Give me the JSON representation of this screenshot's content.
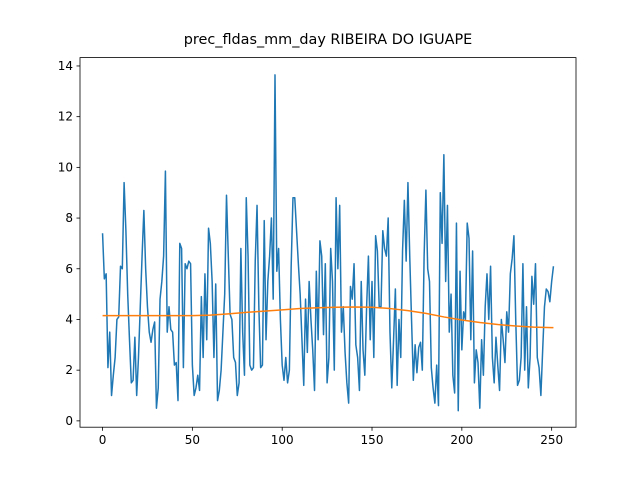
{
  "chart_data": {
    "type": "line",
    "title": "prec_fldas_mm_day RIBEIRA DO IGUAPE",
    "xlim": [
      -12.55,
      263.55
    ],
    "ylim": [
      -0.25,
      14.33
    ],
    "xticks": [
      0,
      50,
      100,
      150,
      200,
      250
    ],
    "yticks": [
      0,
      2,
      4,
      6,
      8,
      10,
      12,
      14
    ],
    "series": [
      {
        "color": "#1f77b4",
        "x": [
          0,
          1,
          2,
          3,
          4,
          5,
          6,
          7,
          8,
          9,
          10,
          11,
          12,
          13,
          14,
          15,
          16,
          17,
          18,
          19,
          20,
          21,
          22,
          23,
          24,
          25,
          26,
          27,
          28,
          29,
          30,
          31,
          32,
          33,
          34,
          35,
          36,
          37,
          38,
          39,
          40,
          41,
          42,
          43,
          44,
          45,
          46,
          47,
          48,
          49,
          50,
          51,
          52,
          53,
          54,
          55,
          56,
          57,
          58,
          59,
          60,
          61,
          62,
          63,
          64,
          65,
          66,
          67,
          68,
          69,
          70,
          71,
          72,
          73,
          74,
          75,
          76,
          77,
          78,
          79,
          80,
          81,
          82,
          83,
          84,
          85,
          86,
          87,
          88,
          89,
          90,
          91,
          92,
          93,
          94,
          95,
          96,
          97,
          98,
          99,
          100,
          101,
          102,
          103,
          104,
          105,
          106,
          107,
          108,
          109,
          110,
          111,
          112,
          113,
          114,
          115,
          116,
          117,
          118,
          119,
          120,
          121,
          122,
          123,
          124,
          125,
          126,
          127,
          128,
          129,
          130,
          131,
          132,
          133,
          134,
          135,
          136,
          137,
          138,
          139,
          140,
          141,
          142,
          143,
          144,
          145,
          146,
          147,
          148,
          149,
          150,
          151,
          152,
          153,
          154,
          155,
          156,
          157,
          158,
          159,
          160,
          161,
          162,
          163,
          164,
          165,
          166,
          167,
          168,
          169,
          170,
          171,
          172,
          173,
          174,
          175,
          176,
          177,
          178,
          179,
          180,
          181,
          182,
          183,
          184,
          185,
          186,
          187,
          188,
          189,
          190,
          191,
          192,
          193,
          194,
          195,
          196,
          197,
          198,
          199,
          200,
          201,
          202,
          203,
          204,
          205,
          206,
          207,
          208,
          209,
          210,
          211,
          212,
          213,
          214,
          215,
          216,
          217,
          218,
          219,
          220,
          221,
          222,
          223,
          224,
          225,
          226,
          227,
          228,
          229,
          230,
          231,
          232,
          233,
          234,
          235,
          236,
          237,
          238,
          239,
          240,
          241,
          242,
          243,
          244,
          245,
          246,
          247,
          248,
          249,
          250,
          251
        ],
        "values": [
          7.4,
          5.6,
          5.8,
          2.1,
          3.5,
          1.0,
          1.8,
          2.5,
          4.0,
          4.1,
          6.1,
          6.0,
          9.4,
          7.5,
          5.0,
          3.2,
          1.5,
          1.6,
          3.3,
          1.0,
          2.5,
          4.5,
          6.5,
          8.3,
          6.0,
          4.5,
          3.5,
          3.1,
          3.6,
          3.9,
          0.5,
          1.3,
          4.8,
          5.5,
          6.5,
          9.85,
          3.5,
          4.5,
          3.6,
          3.5,
          2.2,
          2.3,
          0.8,
          7.0,
          6.8,
          2.1,
          6.2,
          6.0,
          6.3,
          6.2,
          2.2,
          1.0,
          1.3,
          1.8,
          1.2,
          4.9,
          2.5,
          5.8,
          3.2,
          7.6,
          7.0,
          5.5,
          2.5,
          5.4,
          0.8,
          1.2,
          2.0,
          3.5,
          5.0,
          8.9,
          6.5,
          4.2,
          4.0,
          2.5,
          2.3,
          1.0,
          1.5,
          6.8,
          3.5,
          1.8,
          8.8,
          6.5,
          2.2,
          2.0,
          2.1,
          6.3,
          8.5,
          4.5,
          2.1,
          2.2,
          7.9,
          3.2,
          5.5,
          6.5,
          8.0,
          4.8,
          13.65,
          5.9,
          6.8,
          4.0,
          2.2,
          1.6,
          2.5,
          1.5,
          2.0,
          6.1,
          8.8,
          8.8,
          7.5,
          6.2,
          5.0,
          3.2,
          1.4,
          4.8,
          2.7,
          5.5,
          4.0,
          2.8,
          1.2,
          5.9,
          3.2,
          7.1,
          6.5,
          3.4,
          6.2,
          1.5,
          2.5,
          6.8,
          5.5,
          2.0,
          8.8,
          6.0,
          8.5,
          3.5,
          4.5,
          2.7,
          1.5,
          0.7,
          5.3,
          4.8,
          6.2,
          3.0,
          2.5,
          1.2,
          5.5,
          2.8,
          1.8,
          4.5,
          6.5,
          3.2,
          5.5,
          2.5,
          7.3,
          6.7,
          4.5,
          4.5,
          7.5,
          6.8,
          6.5,
          8.0,
          3.5,
          1.3,
          3.2,
          5.2,
          1.4,
          4.0,
          2.5,
          6.7,
          8.7,
          6.3,
          9.4,
          6.5,
          4.0,
          1.6,
          3.0,
          1.9,
          2.9,
          3.1,
          2.0,
          6.5,
          9.1,
          6.0,
          5.5,
          2.1,
          1.3,
          0.7,
          2.2,
          0.6,
          9.0,
          7.0,
          10.5,
          5.5,
          8.5,
          3.5,
          5.0,
          1.8,
          1.1,
          7.8,
          0.4,
          5.9,
          2.8,
          4.3,
          4.0,
          7.8,
          7.2,
          3.2,
          6.7,
          1.5,
          2.8,
          2.3,
          0.5,
          3.2,
          1.8,
          4.5,
          5.8,
          4.0,
          6.1,
          2.5,
          1.5,
          3.3,
          2.2,
          1.2,
          4.0,
          3.2,
          2.3,
          4.3,
          3.5,
          5.8,
          6.4,
          7.3,
          4.0,
          1.4,
          1.6,
          2.5,
          6.2,
          2.0,
          4.5,
          1.3,
          2.5,
          5.7,
          4.6,
          6.2,
          2.5,
          2.1,
          1.0,
          2.8,
          4.5,
          5.2,
          5.1,
          4.7,
          5.5,
          6.1
        ]
      },
      {
        "color": "#ff7f0e",
        "x": [
          0,
          10,
          20,
          30,
          40,
          50,
          60,
          70,
          80,
          90,
          100,
          110,
          120,
          130,
          140,
          150,
          160,
          170,
          180,
          190,
          200,
          210,
          220,
          230,
          240,
          250,
          251
        ],
        "values": [
          4.15,
          4.15,
          4.15,
          4.15,
          4.15,
          4.15,
          4.17,
          4.22,
          4.28,
          4.33,
          4.38,
          4.43,
          4.46,
          4.48,
          4.49,
          4.48,
          4.43,
          4.35,
          4.24,
          4.1,
          3.98,
          3.88,
          3.8,
          3.74,
          3.7,
          3.68,
          3.68
        ]
      }
    ]
  }
}
